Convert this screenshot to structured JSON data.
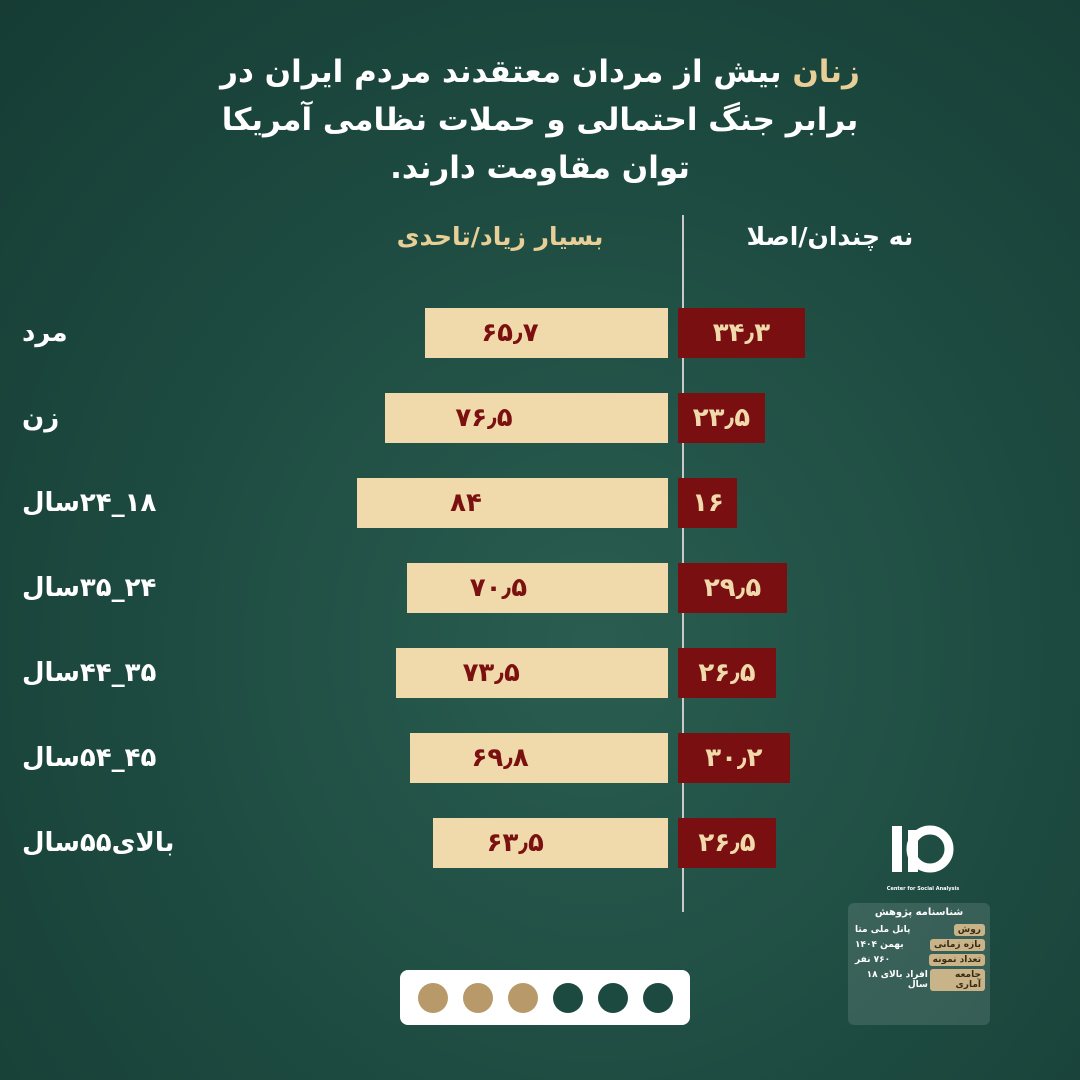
{
  "chart_data": {
    "type": "diverging-bar",
    "title_highlight": "زنان",
    "title": "بیش از مردان معتقدند مردم ایران در برابر جنگ احتمالی و حملات نظامی آمریکا توان مقاومت دارند.",
    "categories": [
      "مرد",
      "زن",
      "۱۸_۲۴سال",
      "۲۴_۳۵سال",
      "۳۵_۴۴سال",
      "۴۵_۵۴سال",
      "بالای۵۵سال"
    ],
    "series": [
      {
        "name": "بسیار زیاد/تاحدی",
        "color": "#f0d9aa",
        "label_color": "#7a1010",
        "values": [
          65.7,
          76.5,
          84,
          70.5,
          73.5,
          69.8,
          63.5
        ],
        "value_labels": [
          "۶۵٫۷",
          "۷۶٫۵",
          "۸۴",
          "۷۰٫۵",
          "۷۳٫۵",
          "۶۹٫۸",
          "۶۳٫۵"
        ]
      },
      {
        "name": "نه چندان/اصلا",
        "color": "#7a0f12",
        "label_color": "#f0d9aa",
        "values": [
          34.3,
          23.5,
          16,
          29.5,
          26.5,
          30.2,
          26.5
        ],
        "value_labels": [
          "۳۴٫۳",
          "۲۳٫۵",
          "۱۶",
          "۲۹٫۵",
          "۲۶٫۵",
          "۳۰٫۲",
          "۲۶٫۵"
        ]
      }
    ]
  },
  "logo": {
    "subtitle": "Center for Social Analysis"
  },
  "research_id": {
    "title": "شناسنامه پژوهش",
    "rows": [
      {
        "label": "روش",
        "value": "پانل ملی متا"
      },
      {
        "label": "بازه زمانی",
        "value": "بهمن ۱۴۰۴"
      },
      {
        "label": "تعداد نمونه",
        "value": "۷۶۰ نفر"
      },
      {
        "label": "جامعه آماری",
        "value": "افراد بالای ۱۸ سال"
      }
    ]
  }
}
